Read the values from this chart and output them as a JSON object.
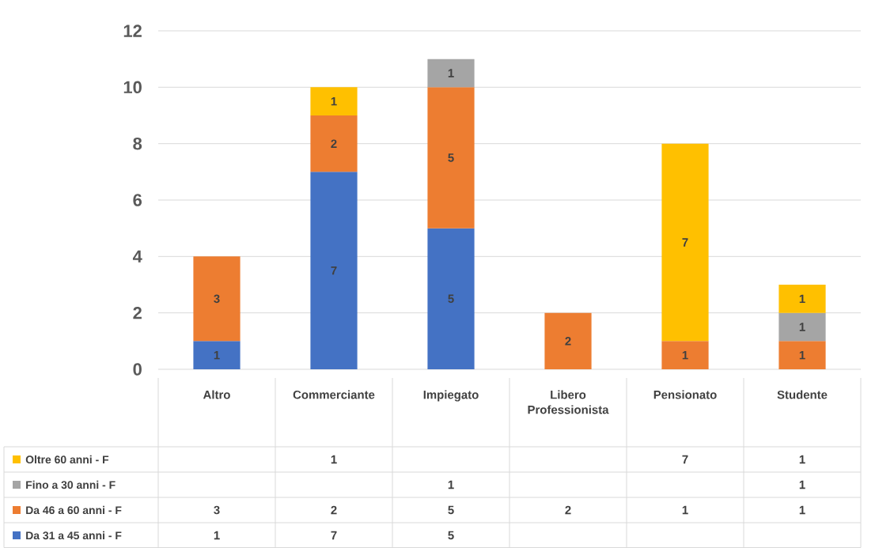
{
  "chart_data": [
    {
      "type": "bar",
      "stacked": true,
      "categories": [
        "Altro",
        "Commerciante",
        "Impiegato",
        "Libero Professionista",
        "Pensionato",
        "Studente"
      ],
      "series": [
        {
          "name": "Da 31 a 45 anni - F",
          "color": "#4472c4",
          "values": [
            1,
            7,
            5,
            null,
            null,
            null
          ],
          "value_labels": [
            "1",
            "7",
            "5",
            null,
            null,
            null
          ]
        },
        {
          "name": "Da 46 a 60 anni - F",
          "color": "#ed7d31",
          "values": [
            3,
            2,
            5,
            2,
            1,
            1
          ],
          "value_labels": [
            "3",
            "2",
            "5",
            "2",
            "1",
            "1"
          ]
        },
        {
          "name": "Fino a 30 anni - F",
          "color": "#a5a5a5",
          "values": [
            null,
            null,
            1,
            null,
            null,
            1
          ],
          "value_labels": [
            null,
            null,
            "1",
            null,
            null,
            "1"
          ]
        },
        {
          "name": "Oltre 60 anni - F",
          "color": "#ffc000",
          "values": [
            null,
            1,
            null,
            null,
            7,
            1
          ],
          "value_labels": [
            null,
            "1",
            null,
            null,
            "7",
            "1"
          ]
        }
      ],
      "ylim": [
        0,
        12
      ],
      "yticks": [
        0,
        2,
        4,
        6,
        8,
        10,
        12
      ],
      "grid": "y",
      "legend": "bottom left"
    },
    {
      "type": "heatmap",
      "categories": [
        null,
        null,
        null,
        null,
        null,
        null
      ],
      "y_categories": [
        null,
        null,
        null,
        null
      ],
      "cells": [
        [
          null,
          1,
          null,
          null,
          7,
          1
        ],
        [
          null,
          null,
          1,
          null,
          null,
          1
        ],
        [
          3,
          2,
          5,
          2,
          1,
          1
        ],
        [
          1,
          7,
          5,
          null,
          null,
          null
        ]
      ],
      "data_labels": true
    }
  ]
}
